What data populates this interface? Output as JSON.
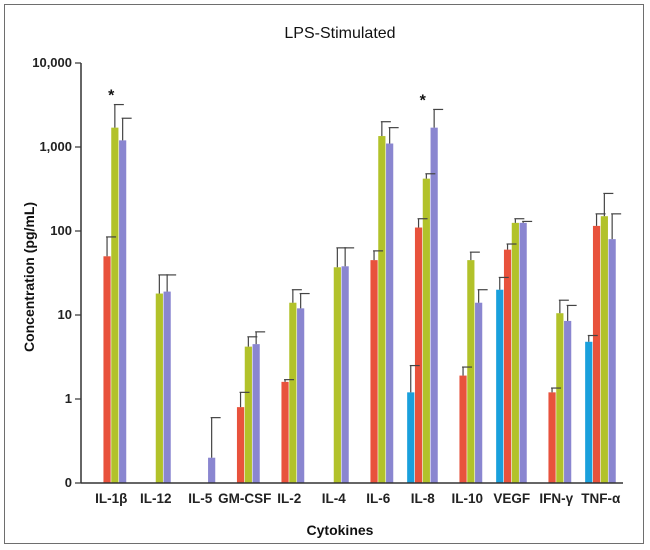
{
  "chart_data": {
    "type": "bar",
    "title": "LPS-Stimulated",
    "xlabel": "Cytokines",
    "ylabel": "Concentration (pg/mL)",
    "yscale": "log",
    "ylim": [
      0.1,
      10000
    ],
    "ytick_values": [
      0.1,
      1,
      10,
      100,
      1000,
      10000
    ],
    "ytick_labels": [
      "0",
      "1",
      "10",
      "100",
      "1,000",
      "10,000"
    ],
    "categories": [
      "IL-1β",
      "IL-12",
      "IL-5",
      "GM-CSF",
      "IL-2",
      "IL-4",
      "IL-6",
      "IL-8",
      "IL-10",
      "VEGF",
      "IFN-γ",
      "TNF-α"
    ],
    "series": [
      {
        "color": "#1aa0dc",
        "values": [
          null,
          null,
          null,
          null,
          null,
          null,
          null,
          1.2,
          null,
          20,
          null,
          4.8
        ],
        "errors": [
          null,
          null,
          null,
          null,
          null,
          null,
          null,
          2.5,
          null,
          28,
          null,
          5.7
        ]
      },
      {
        "color": "#e8523c",
        "values": [
          50,
          null,
          null,
          0.8,
          1.6,
          null,
          45,
          110,
          1.9,
          60,
          1.2,
          115
        ],
        "errors": [
          85,
          null,
          null,
          1.2,
          1.7,
          null,
          58,
          140,
          2.4,
          70,
          1.35,
          160
        ]
      },
      {
        "color": "#b2c22a",
        "values": [
          1700,
          18,
          null,
          4.2,
          14,
          37,
          1350,
          420,
          45,
          125,
          10.5,
          150
        ],
        "errors": [
          3200,
          30,
          null,
          5.5,
          20,
          63,
          2000,
          480,
          56,
          140,
          15,
          280
        ]
      },
      {
        "color": "#8a86d0",
        "values": [
          1200,
          19,
          0.2,
          4.5,
          12,
          38,
          1100,
          1700,
          14,
          125,
          8.5,
          80
        ],
        "errors": [
          2200,
          30,
          0.6,
          6.3,
          18,
          63,
          1700,
          2800,
          20,
          130,
          13,
          160
        ]
      }
    ],
    "annotations": [
      {
        "text": "*",
        "category": "IL-1β"
      },
      {
        "text": "*",
        "category": "IL-8"
      }
    ],
    "grid": false,
    "legend": "none"
  }
}
